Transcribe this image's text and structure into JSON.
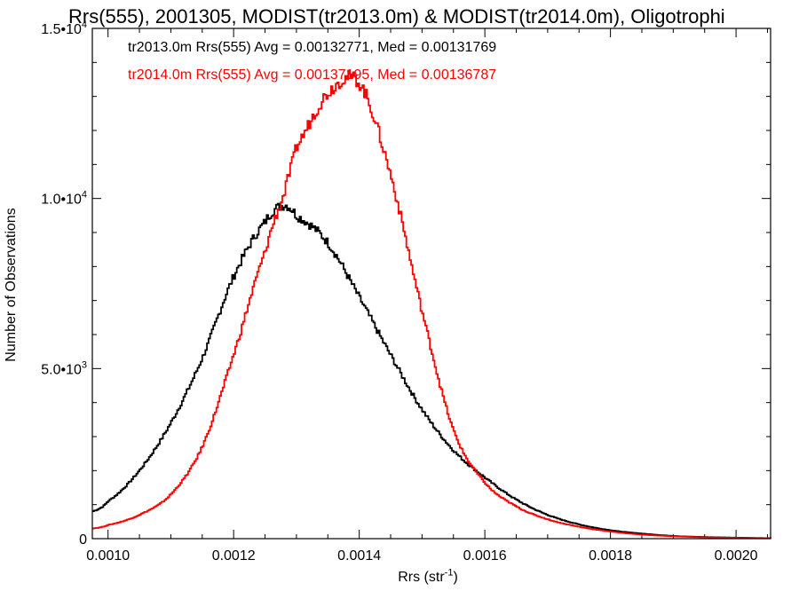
{
  "chart_data": {
    "type": "line",
    "title": "Rrs(555), 2001305, MODIST(tr2013.0m) & MODIST(tr2014.0m), Oligotrophi",
    "xlabel": "Rrs (str",
    "xlabel_sup": "-1",
    "xlabel_end": ")",
    "ylabel": "Number of Observations",
    "xlim": [
      0.000975,
      0.002055
    ],
    "ylim": [
      0,
      15000
    ],
    "x_ticks": [
      {
        "value": 0.001,
        "label": "0.0010"
      },
      {
        "value": 0.0012,
        "label": "0.0012"
      },
      {
        "value": 0.0014,
        "label": "0.0014"
      },
      {
        "value": 0.0016,
        "label": "0.0016"
      },
      {
        "value": 0.0018,
        "label": "0.0018"
      },
      {
        "value": 0.002,
        "label": "0.0020"
      }
    ],
    "y_ticks": [
      {
        "value": 0,
        "mant": "0",
        "exp": ""
      },
      {
        "value": 5000,
        "mant": "5.0•10",
        "exp": "3"
      },
      {
        "value": 10000,
        "mant": "1.0•10",
        "exp": "4"
      },
      {
        "value": 15000,
        "mant": "1.5•10",
        "exp": "4"
      }
    ],
    "grid": false,
    "legend": [
      {
        "text": "tr2013.0m Rrs(555) Avg = 0.00132771, Med = 0.00131769",
        "color": "#000000"
      },
      {
        "text": "tr2014.0m Rrs(555) Avg = 0.00137195, Med = 0.00136787",
        "color": "#ff0000"
      }
    ],
    "x": [
      0.000975,
      0.001,
      0.00105,
      0.0011,
      0.00115,
      0.0012,
      0.00125,
      0.00128,
      0.0013,
      0.00135,
      0.0014,
      0.00145,
      0.0015,
      0.00155,
      0.0016,
      0.00165,
      0.0017,
      0.00175,
      0.0018,
      0.00185,
      0.0019,
      0.00195,
      0.002,
      0.002055
    ],
    "series": [
      {
        "color": "#000000",
        "values": [
          800,
          1100,
          2000,
          3400,
          5300,
          7700,
          9300,
          9800,
          9500,
          8700,
          7100,
          5400,
          3800,
          2600,
          1800,
          1150,
          700,
          420,
          250,
          150,
          80,
          50,
          30,
          15
        ]
      },
      {
        "color": "#ff0000",
        "values": [
          300,
          400,
          700,
          1300,
          2700,
          5400,
          8400,
          10100,
          11500,
          13100,
          13400,
          10700,
          6700,
          3200,
          1650,
          950,
          570,
          350,
          210,
          120,
          70,
          40,
          25,
          10
        ]
      }
    ]
  }
}
